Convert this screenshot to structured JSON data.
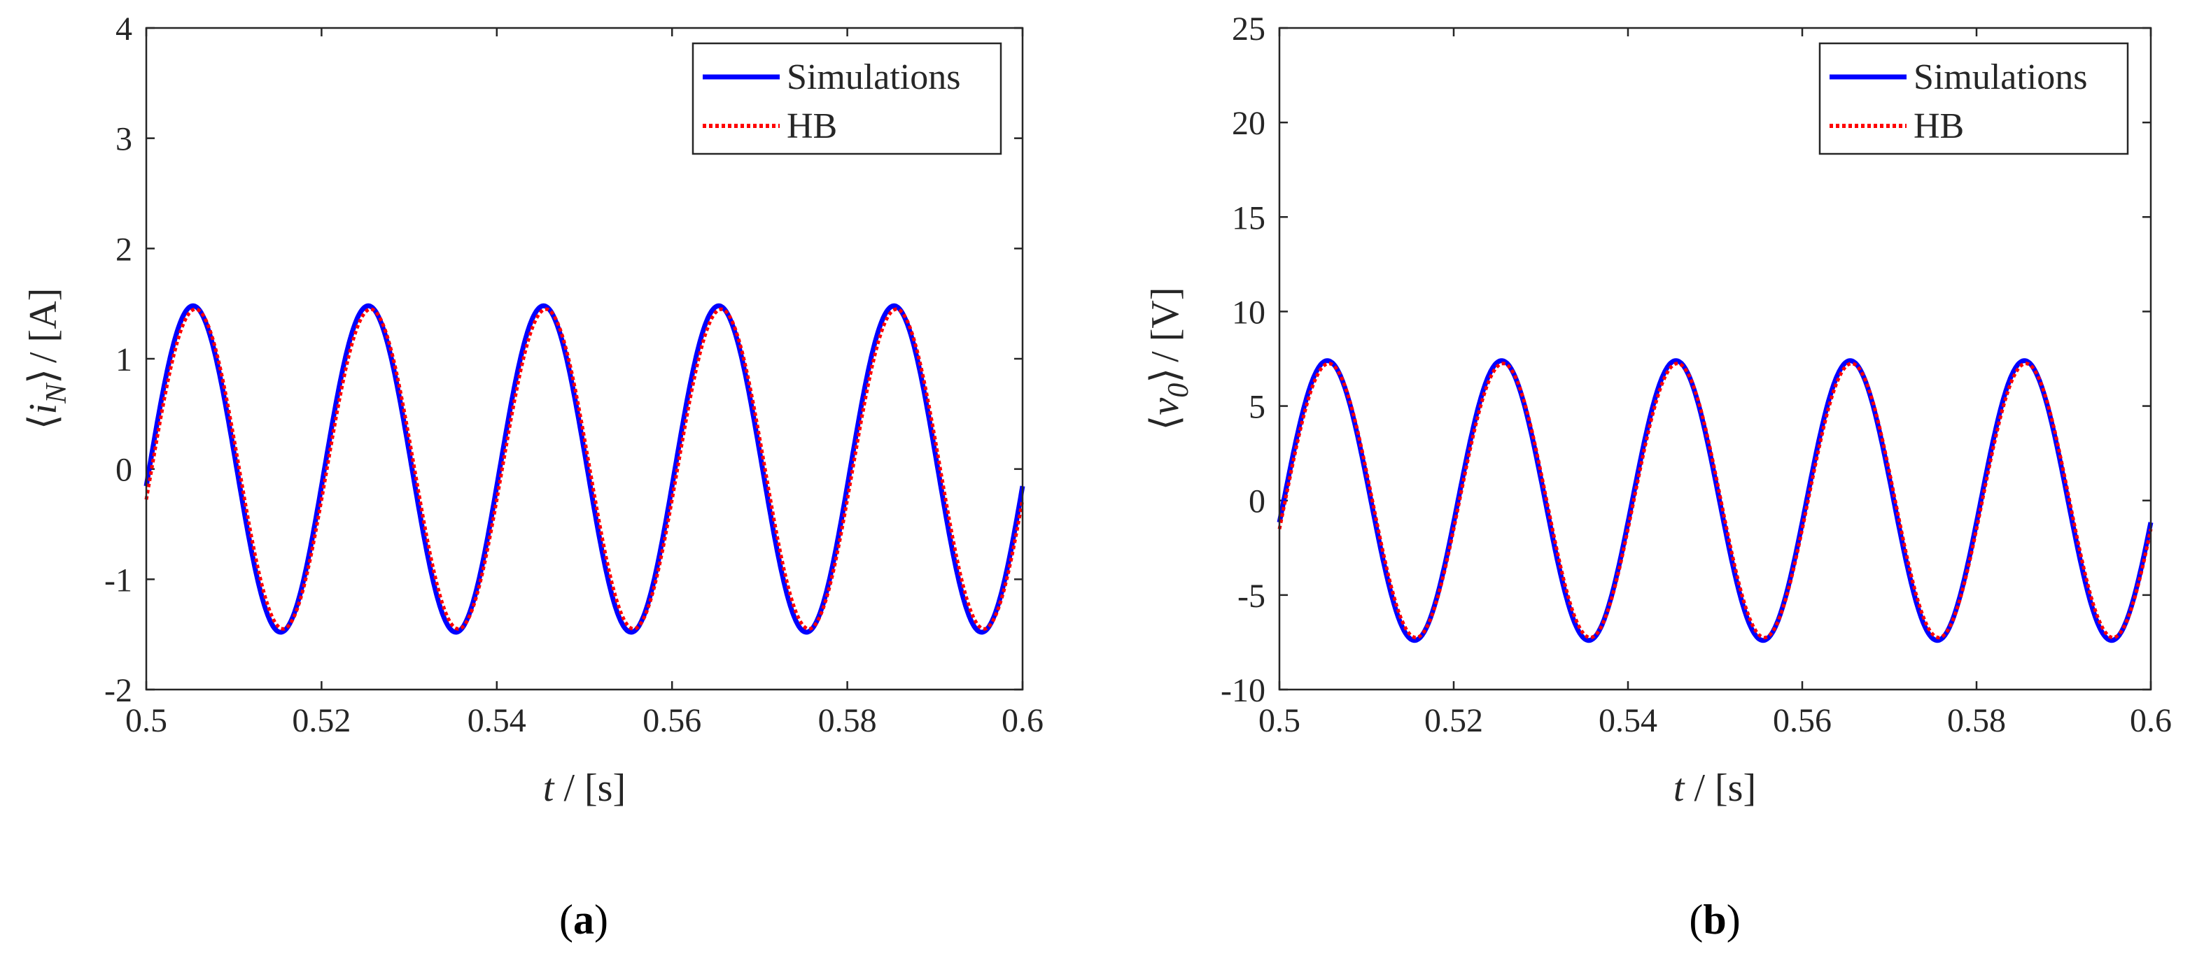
{
  "colors": {
    "simulations": "#0000ff",
    "hb": "#ff0000",
    "axis": "#262626",
    "background": "#ffffff"
  },
  "chart_data": [
    {
      "type": "line",
      "panel": "a",
      "caption": {
        "open": "(",
        "letter": "a",
        "close": ")"
      },
      "xlabel": {
        "var": "t",
        "unit": " / [s]"
      },
      "ylabel": {
        "open": "⟨",
        "var": "i",
        "sub": "N",
        "close": "⟩",
        "unit": "/ [A]"
      },
      "xlim": [
        0.5,
        0.6
      ],
      "ylim": [
        -2,
        4
      ],
      "xticks": [
        0.5,
        0.52,
        0.54,
        0.56,
        0.58,
        0.6
      ],
      "xtick_labels": [
        "0.5",
        "0.52",
        "0.54",
        "0.56",
        "0.58",
        "0.6"
      ],
      "yticks": [
        -2,
        -1,
        0,
        1,
        2,
        3,
        4
      ],
      "ytick_labels": [
        "-2",
        "-1",
        "0",
        "1",
        "2",
        "3",
        "4"
      ],
      "grid": false,
      "legend": {
        "location": "top-right",
        "entries": [
          "Simulations",
          "HB"
        ]
      },
      "series": [
        {
          "name": "Simulations",
          "style": "solid",
          "amplitude": 1.48,
          "frequency_hz": 50,
          "phase_deg": -6,
          "offset": 0
        },
        {
          "name": "HB",
          "style": "dotted",
          "amplitude": 1.45,
          "frequency_hz": 50,
          "phase_deg": -11,
          "offset": 0
        }
      ]
    },
    {
      "type": "line",
      "panel": "b",
      "caption": {
        "open": "(",
        "letter": "b",
        "close": ")"
      },
      "xlabel": {
        "var": "t",
        "unit": " / [s]"
      },
      "ylabel": {
        "open": "⟨",
        "var": "v",
        "sub": "0",
        "close": "⟩",
        "unit": "/ [V]"
      },
      "xlim": [
        0.5,
        0.6
      ],
      "ylim": [
        -10,
        25
      ],
      "xticks": [
        0.5,
        0.52,
        0.54,
        0.56,
        0.58,
        0.6
      ],
      "xtick_labels": [
        "0.5",
        "0.52",
        "0.54",
        "0.56",
        "0.58",
        "0.6"
      ],
      "yticks": [
        -10,
        -5,
        0,
        5,
        10,
        15,
        20,
        25
      ],
      "ytick_labels": [
        "-10",
        "-5",
        "0",
        "5",
        "10",
        "15",
        "20",
        "25"
      ],
      "grid": false,
      "legend": {
        "location": "top-right",
        "entries": [
          "Simulations",
          "HB"
        ]
      },
      "series": [
        {
          "name": "Simulations",
          "style": "solid",
          "amplitude": 7.4,
          "frequency_hz": 50,
          "phase_deg": -9,
          "offset": 0
        },
        {
          "name": "HB",
          "style": "dotted",
          "amplitude": 7.25,
          "frequency_hz": 50,
          "phase_deg": -12,
          "offset": 0
        }
      ]
    }
  ]
}
